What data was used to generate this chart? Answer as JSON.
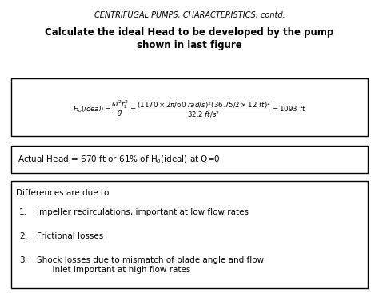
{
  "background_color": "#ffffff",
  "title1": "CENTRIFUGAL PUMPS, CHARACTERISTICS, contd.",
  "title2_line1": "Calculate the ideal Head to be developed by the pump",
  "title2_line2": "shown in last figure",
  "formula": "$H_o(ideal) = \\dfrac{\\omega^2 r_2^2}{g} = \\dfrac{(1170\\times2\\pi/60\\ rad/s)^2(36.75/2\\times12\\ ft)^2}{32.2\\ ft/s^2} = 1093\\ ft$",
  "actual_head": "Actual Head = 670 ft or 61% of H$_o$(ideal) at Q=0",
  "diff_title": "Differences are due to",
  "items": [
    "Impeller recirculations, important at low flow rates",
    "Frictional losses",
    "Shock losses due to mismatch of blade angle and flow\n      inlet important at high flow rates"
  ],
  "title1_fontsize": 7.0,
  "title2_fontsize": 8.5,
  "body_fontsize": 7.5,
  "formula_fontsize": 6.2
}
